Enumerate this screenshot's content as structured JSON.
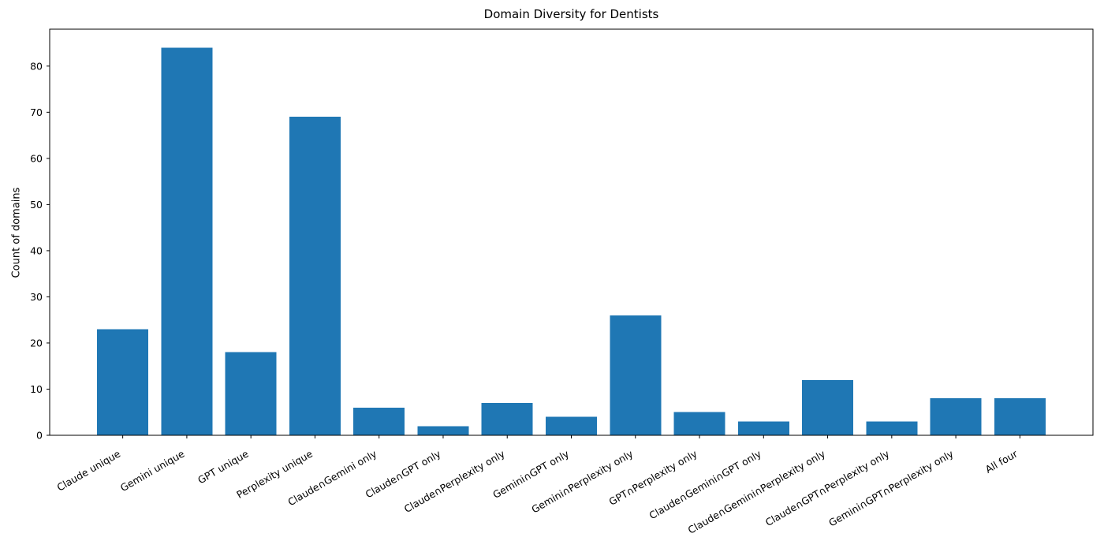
{
  "chart_data": {
    "type": "bar",
    "title": "Domain Diversity for Dentists",
    "xlabel": "",
    "ylabel": "Count of domains",
    "categories": [
      "Claude unique",
      "Gemini unique",
      "GPT unique",
      "Perplexity unique",
      "Claude∩Gemini only",
      "Claude∩GPT only",
      "Claude∩Perplexity only",
      "Gemini∩GPT only",
      "Gemini∩Perplexity only",
      "GPT∩Perplexity only",
      "Claude∩Gemini∩GPT only",
      "Claude∩Gemini∩Perplexity only",
      "Claude∩GPT∩Perplexity only",
      "Gemini∩GPT∩Perplexity only",
      "All four"
    ],
    "values": [
      23,
      84,
      18,
      69,
      6,
      2,
      7,
      4,
      26,
      5,
      3,
      12,
      3,
      8,
      8
    ],
    "yticks": [
      0,
      10,
      20,
      30,
      40,
      50,
      60,
      70,
      80
    ],
    "ylim": [
      0,
      88
    ],
    "bar_color": "#1f77b4",
    "axis_color": "#000000",
    "grid": false,
    "legend": null,
    "x_tick_label_rotation_deg": 30
  }
}
